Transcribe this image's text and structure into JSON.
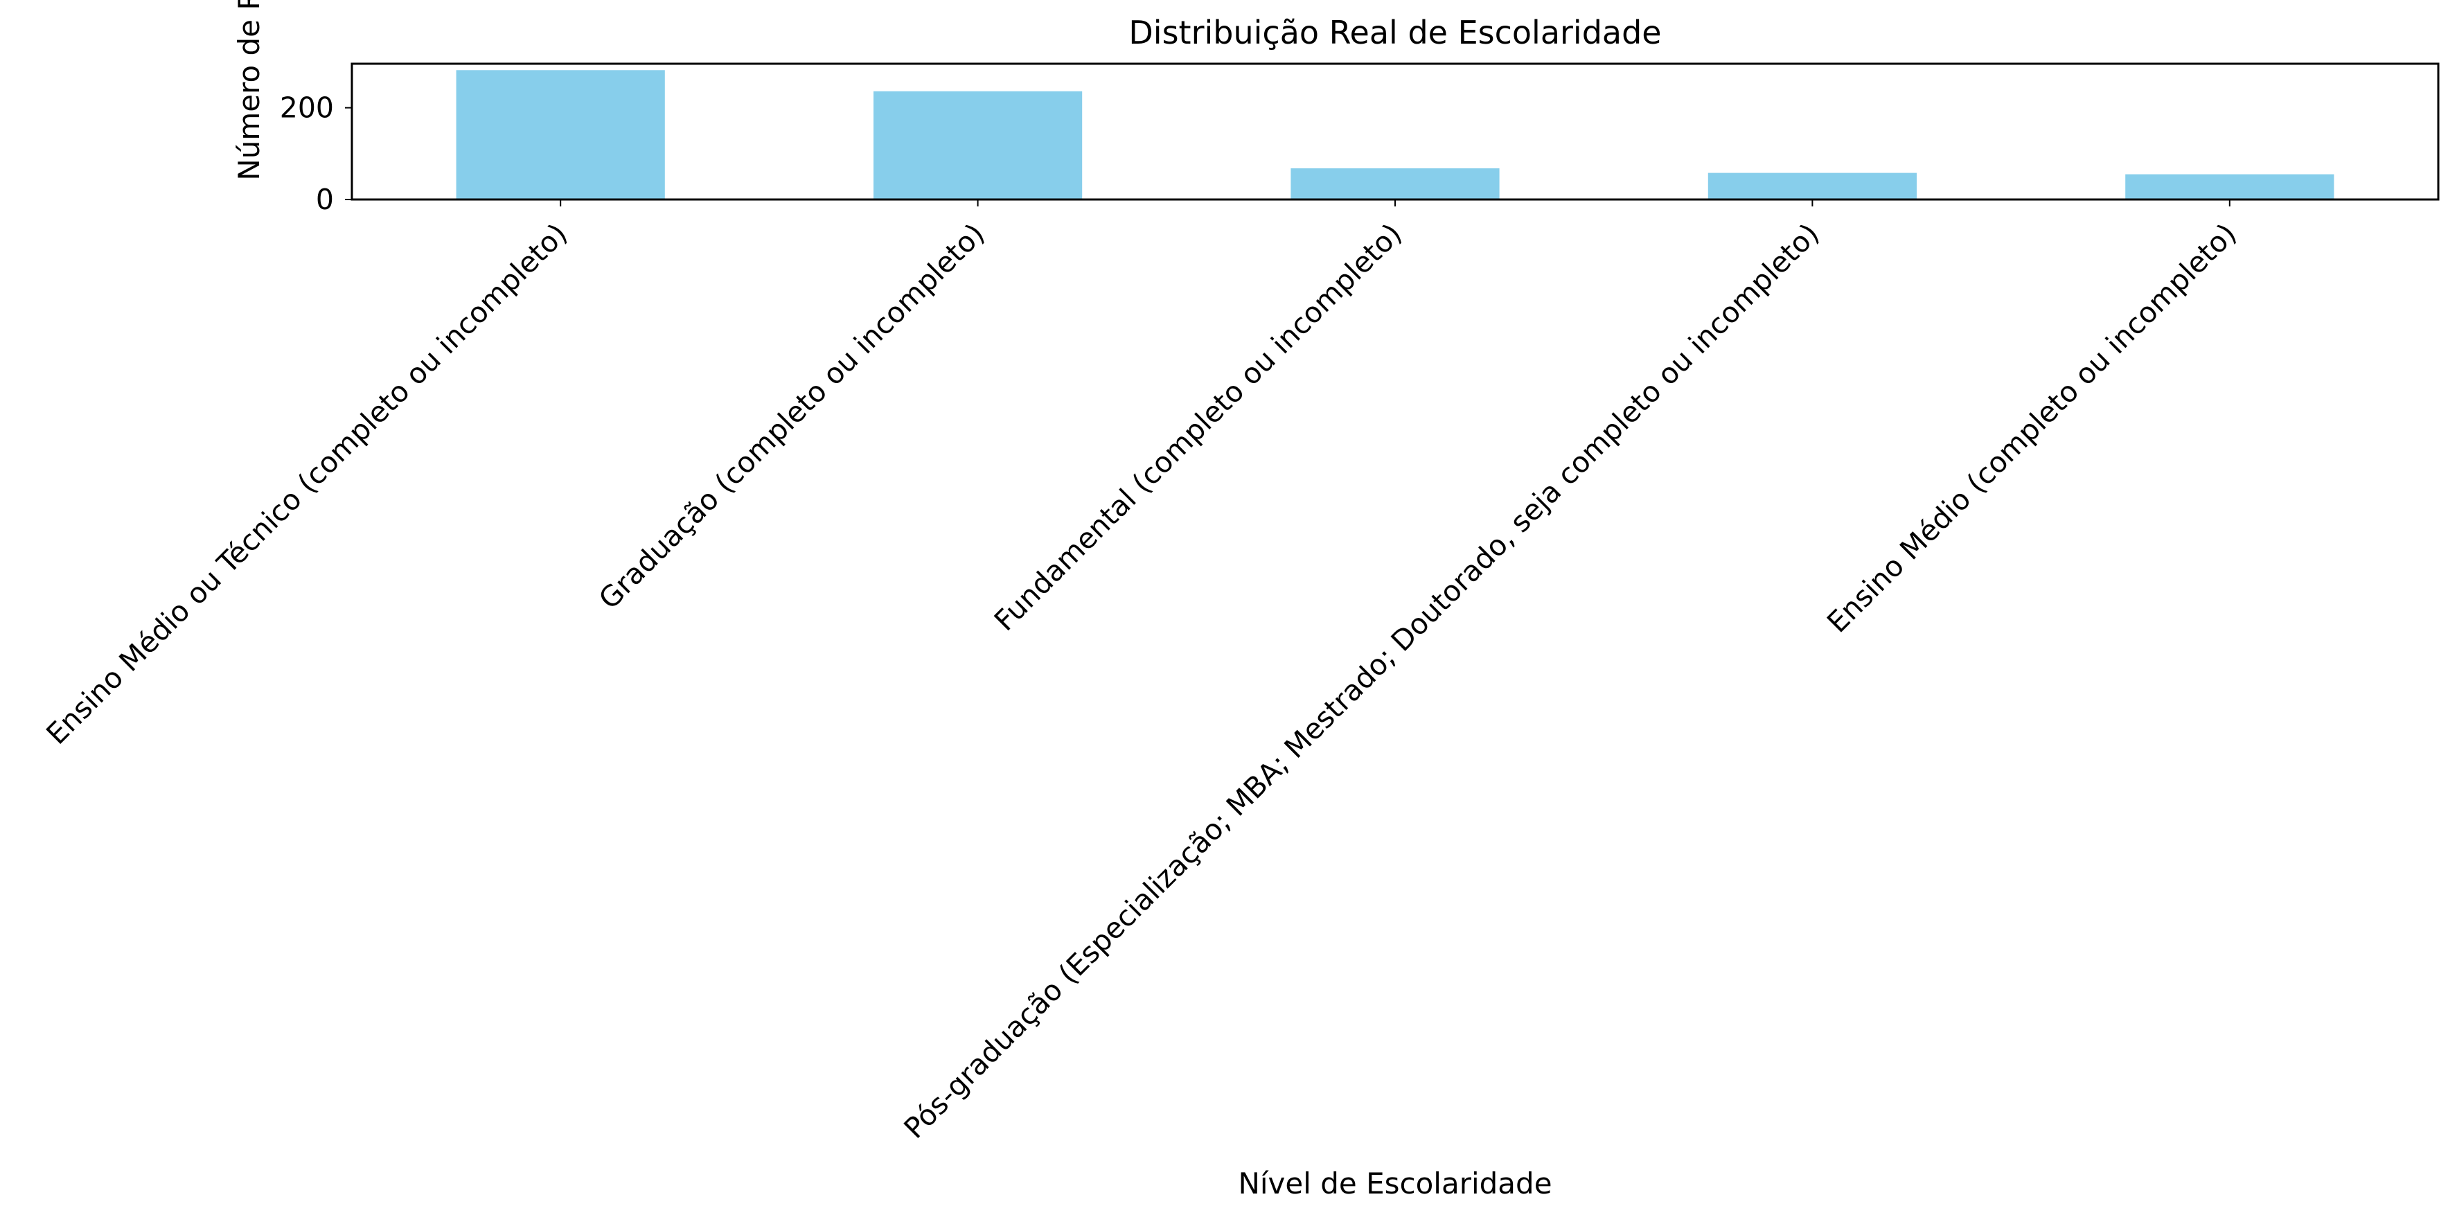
{
  "chart_data": {
    "type": "bar",
    "title": "Distribuição Real de Escolaridade",
    "xlabel": "Nível de Escolaridade",
    "ylabel": "Número de Respondentes",
    "categories": [
      "Ensino Médio ou Técnico (completo ou incompleto)",
      "Graduação (completo ou incompleto)",
      "Fundamental (completo ou incompleto)",
      "Pós-graduação (Especialização; MBA; Mestrado; Doutorado, seja completo ou incompleto)",
      "Ensino Médio (completo ou incompleto)"
    ],
    "values": [
      282,
      236,
      68,
      58,
      55
    ],
    "ylim": [
      0,
      296
    ],
    "yticks": [
      0,
      200
    ],
    "bar_color": "#87CEEB",
    "grid": false,
    "legend": false
  }
}
